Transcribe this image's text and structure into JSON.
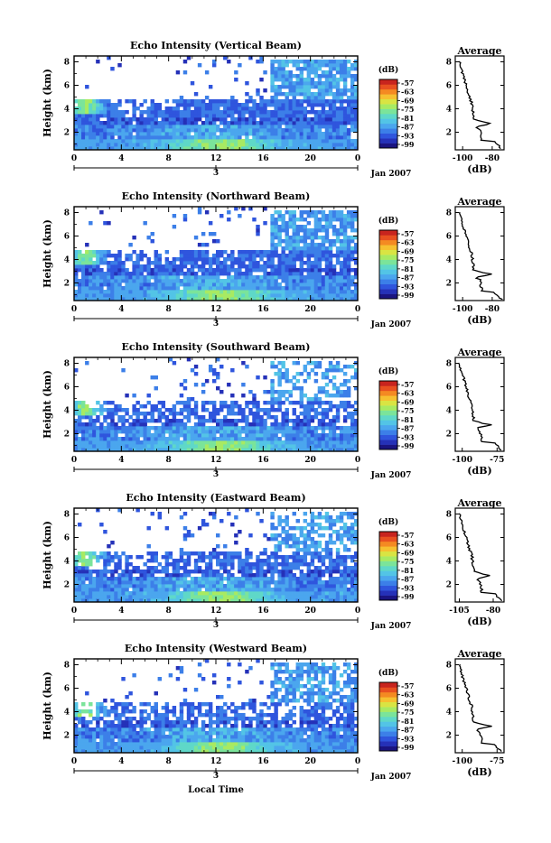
{
  "colormap": [
    "#1a1480",
    "#2531b8",
    "#2f55dd",
    "#3c7fe8",
    "#4ba6ee",
    "#53c4e6",
    "#5fd8c8",
    "#7be49a",
    "#a8ea62",
    "#d9e443",
    "#f6c030",
    "#f48a22",
    "#e85020",
    "#c8241e"
  ],
  "panels": [
    {
      "title": "Echo Intensity (Vertical Beam)",
      "avg_xticks": [
        "-100",
        "-80"
      ],
      "avg_xlim": [
        -105,
        -72
      ],
      "seed": 11,
      "upper": 0.85,
      "gap": 0.05
    },
    {
      "title": "Echo Intensity (Northward Beam)",
      "avg_xticks": [
        "-100",
        "-80"
      ],
      "avg_xlim": [
        -105,
        -72
      ],
      "seed": 23,
      "upper": 0.8,
      "gap": 0.1
    },
    {
      "title": "Echo Intensity (Southward Beam)",
      "avg_xticks": [
        "-100",
        "-75"
      ],
      "avg_xlim": [
        -105,
        -70
      ],
      "seed": 37,
      "upper": 0.45,
      "gap": 0.25
    },
    {
      "title": "Echo Intensity (Eastward Beam)",
      "avg_xticks": [
        "-105",
        "-80"
      ],
      "avg_xlim": [
        -108,
        -72
      ],
      "seed": 41,
      "upper": 0.6,
      "gap": 0.2
    },
    {
      "title": "Echo Intensity (Westward Beam)",
      "avg_xticks": [
        "-100",
        "-75"
      ],
      "avg_xlim": [
        -105,
        -70
      ],
      "seed": 53,
      "upper": 0.65,
      "gap": 0.2
    }
  ],
  "chart_data": {
    "type": "heatmap",
    "ylabel": "Height (km)",
    "yticks": [
      "2",
      "4",
      "6",
      "8"
    ],
    "ylim": [
      0.5,
      8.5
    ],
    "xticks": [
      "0",
      "4",
      "8",
      "12",
      "16",
      "20",
      "0"
    ],
    "xlim": [
      0,
      24
    ],
    "day_label": "3",
    "date_label": "Jan 2007",
    "xlabel": "Local Time",
    "colorbar_unit": "(dB)",
    "colorbar_ticks": [
      "-57",
      "-63",
      "-69",
      "-75",
      "-81",
      "-87",
      "-93",
      "-99"
    ],
    "avg_title": "Average",
    "avg_yticks": [
      "2",
      "4",
      "6",
      "8"
    ],
    "avg_xlabel": "(dB)"
  }
}
